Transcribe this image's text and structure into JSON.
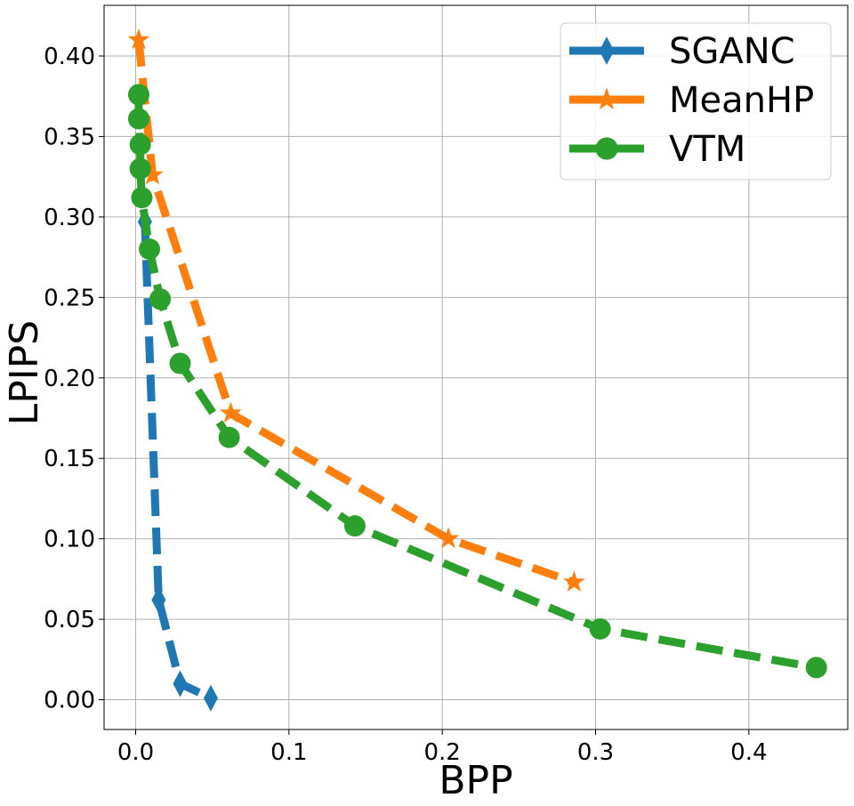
{
  "chart_data": {
    "type": "line",
    "title": "",
    "xlabel": "BPP",
    "ylabel": "LPIPS",
    "xlim": [
      -0.0206,
      0.4645
    ],
    "ylim": [
      -0.0185,
      0.4315
    ],
    "xticks": [
      0.0,
      0.1,
      0.2,
      0.3,
      0.4
    ],
    "xtick_labels": [
      "0.0",
      "0.1",
      "0.2",
      "0.3",
      "0.4"
    ],
    "yticks": [
      0.0,
      0.05,
      0.1,
      0.15,
      0.2,
      0.25,
      0.3,
      0.35,
      0.4
    ],
    "ytick_labels": [
      "0.00",
      "0.05",
      "0.10",
      "0.15",
      "0.20",
      "0.25",
      "0.30",
      "0.35",
      "0.40"
    ],
    "grid": true,
    "legend_position": "top-right",
    "series": [
      {
        "name": "SGANC",
        "color": "#1f77b4",
        "marker": "diamond",
        "x": [
          0.006,
          0.015,
          0.029,
          0.049
        ],
        "y": [
          0.297,
          0.062,
          0.01,
          0.001
        ]
      },
      {
        "name": "MeanHP",
        "color": "#ff7f0e",
        "marker": "star",
        "x": [
          0.002,
          0.011,
          0.062,
          0.204,
          0.286
        ],
        "y": [
          0.41,
          0.326,
          0.178,
          0.1,
          0.073
        ]
      },
      {
        "name": "VTM",
        "color": "#2ca02c",
        "marker": "circle",
        "x": [
          0.002,
          0.002,
          0.003,
          0.003,
          0.004,
          0.009,
          0.016,
          0.029,
          0.061,
          0.143,
          0.303,
          0.444
        ],
        "y": [
          0.376,
          0.361,
          0.345,
          0.33,
          0.312,
          0.28,
          0.249,
          0.209,
          0.163,
          0.108,
          0.044,
          0.02
        ]
      }
    ]
  }
}
